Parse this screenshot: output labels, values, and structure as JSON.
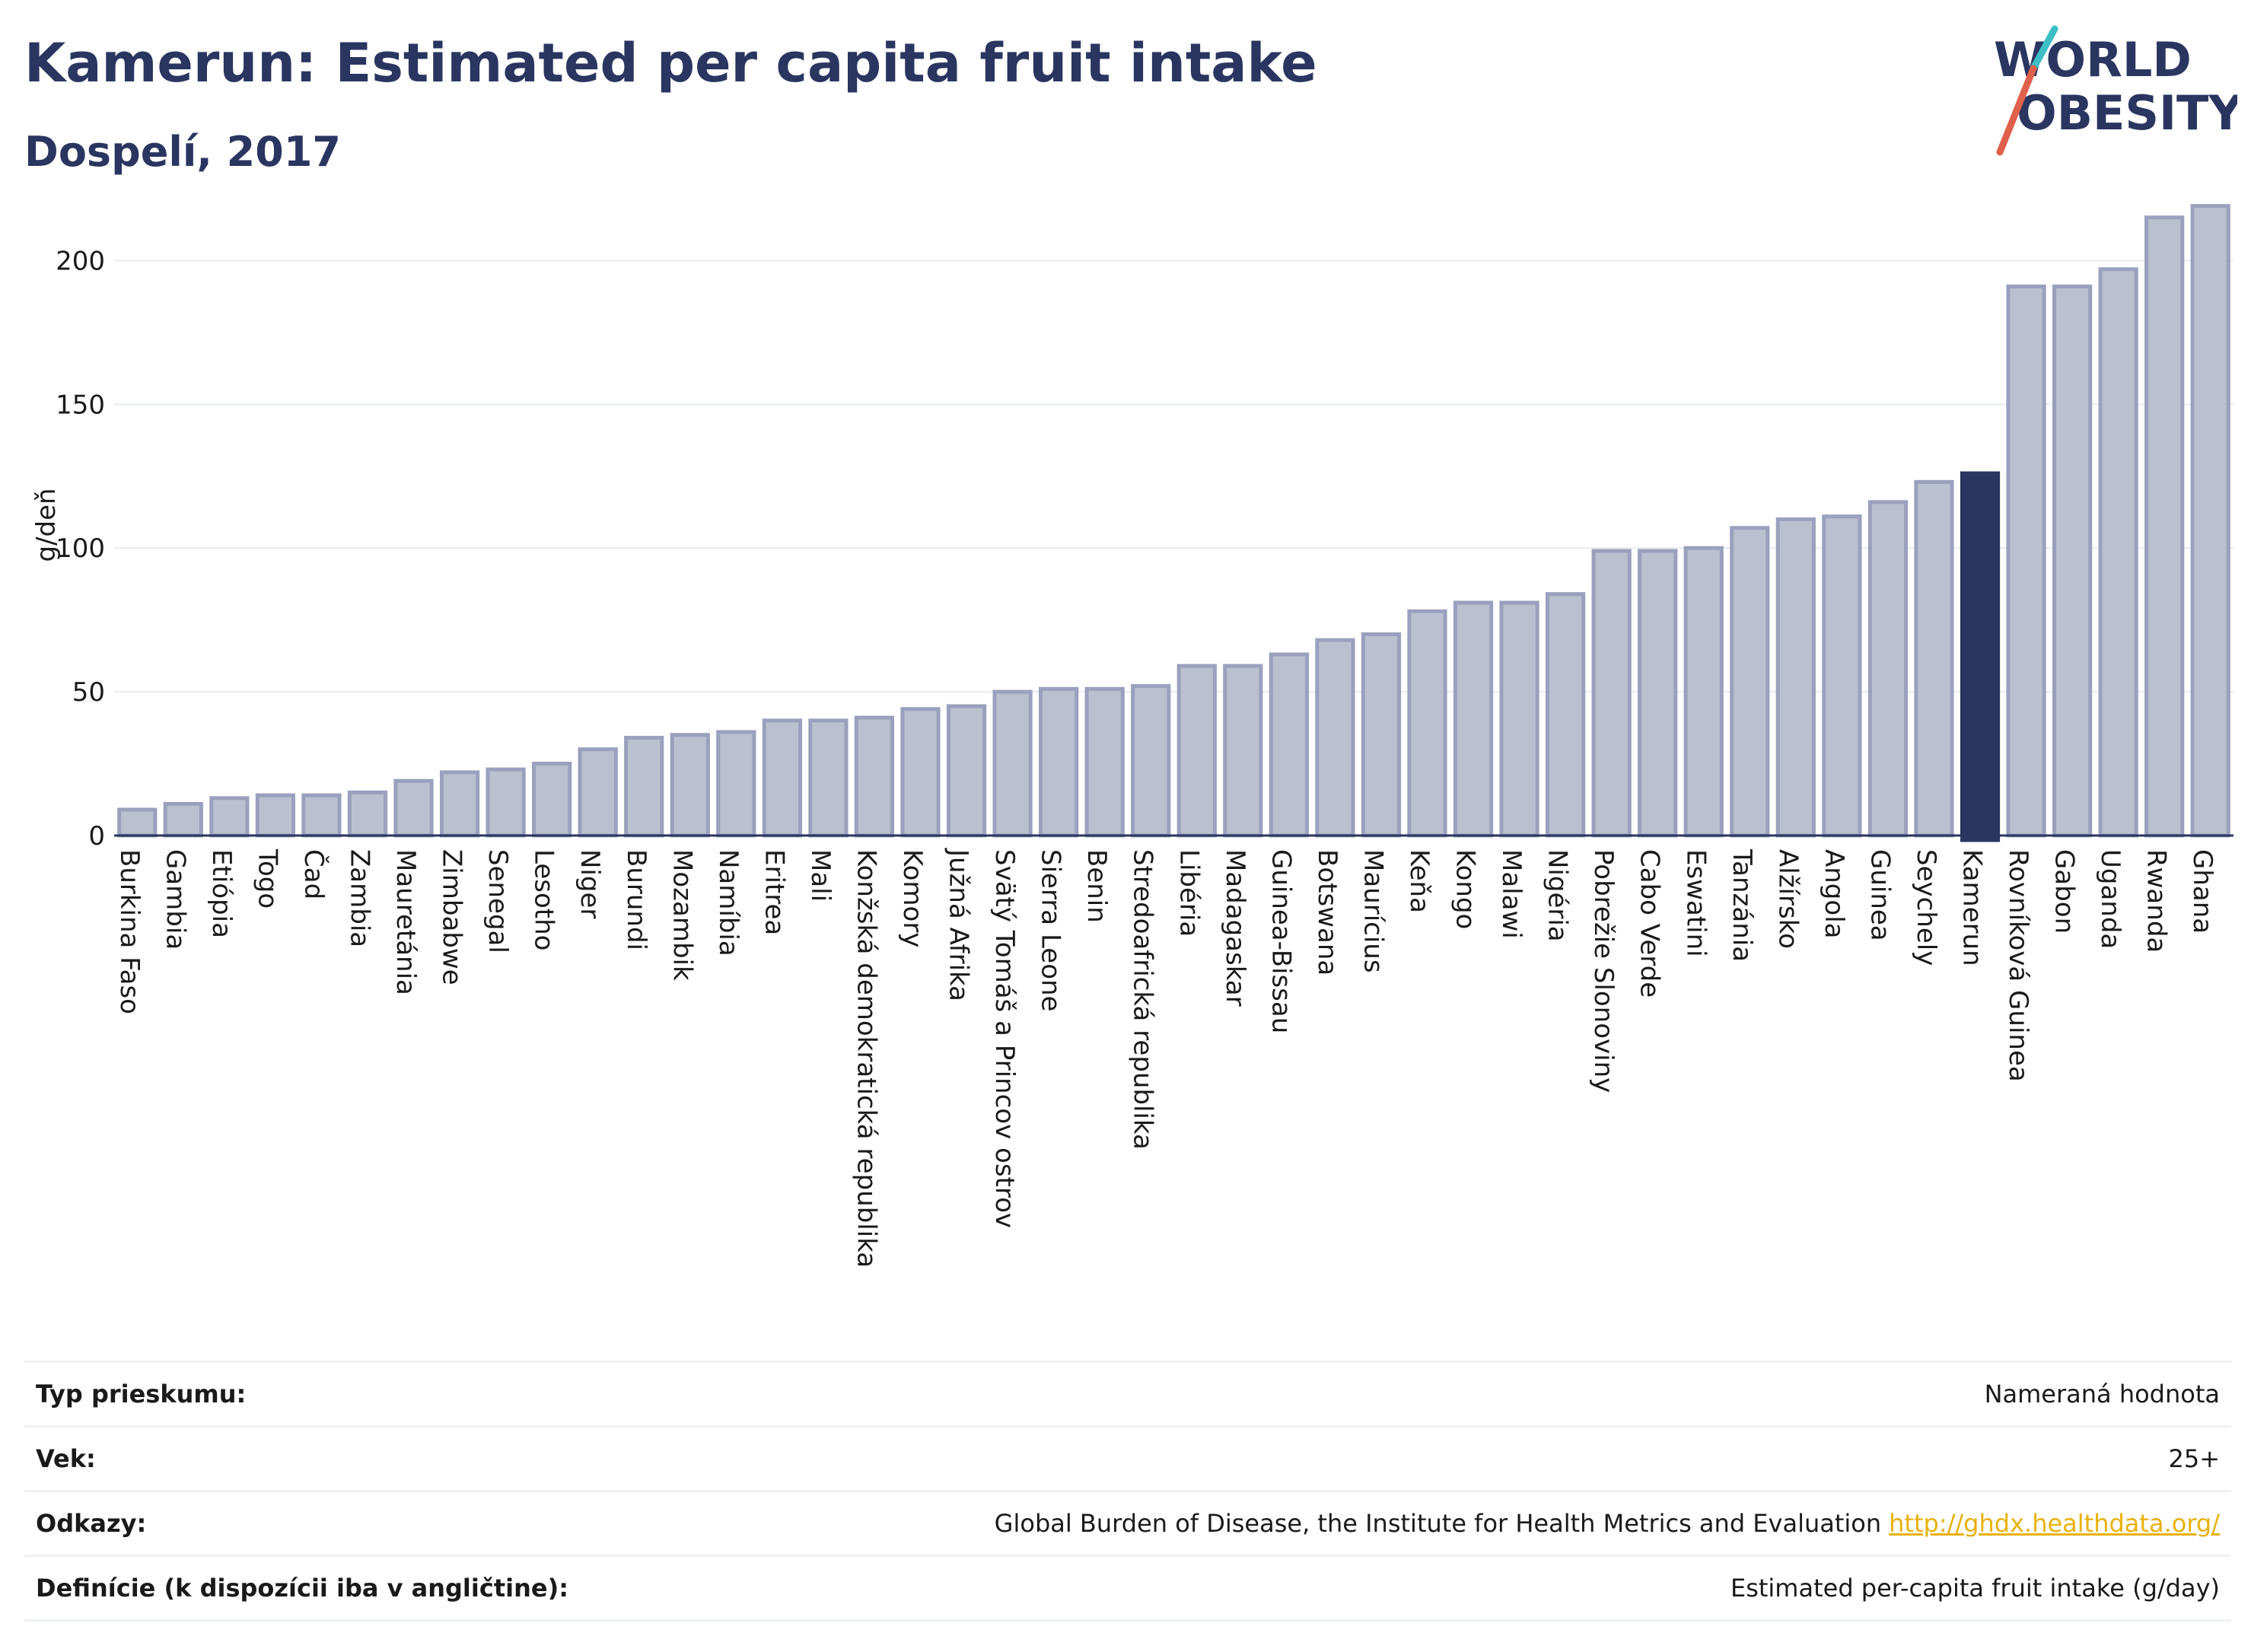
{
  "header": {
    "title": "Kamerun: Estimated per capita fruit intake",
    "subtitle": "Dospelí, 2017"
  },
  "logo": {
    "line1": "WORLD",
    "line2": "OBESITY"
  },
  "colors": {
    "bar": "#bbc0d0",
    "bar_border": "#9aa0bd",
    "highlight": "#2a3560",
    "text": "#2a3560",
    "grid": "#e8ebef",
    "link": "#e8b10c"
  },
  "chart_data": {
    "type": "bar",
    "ylabel": "g/deň",
    "ylim": [
      0,
      225
    ],
    "yticks": [
      0,
      50,
      100,
      150,
      200
    ],
    "highlight": "Kamerun",
    "categories": [
      "Burkina Faso",
      "Gambia",
      "Etiópia",
      "Togo",
      "Čad",
      "Zambia",
      "Mauretánia",
      "Zimbabwe",
      "Senegal",
      "Lesotho",
      "Niger",
      "Burundi",
      "Mozambik",
      "Namíbia",
      "Eritrea",
      "Mali",
      "Konžská demokratická republika",
      "Komory",
      "Južná Afrika",
      "Svätý Tomáš a Princov ostrov",
      "Sierra Leone",
      "Benin",
      "Stredoafrická republika",
      "Libéria",
      "Madagaskar",
      "Guinea-Bissau",
      "Botswana",
      "Maurícius",
      "Keňa",
      "Kongo",
      "Malawi",
      "Nigéria",
      "Pobrežie Slonoviny",
      "Cabo Verde",
      "Eswatini",
      "Tanzánia",
      "Alžírsko",
      "Angola",
      "Guinea",
      "Seychely",
      "Kamerun",
      "Rovníková Guinea",
      "Gabon",
      "Uganda",
      "Rwanda",
      "Ghana"
    ],
    "values": [
      9,
      11,
      13,
      14,
      14,
      15,
      19,
      22,
      23,
      25,
      30,
      34,
      35,
      36,
      40,
      40,
      41,
      44,
      45,
      50,
      51,
      51,
      52,
      59,
      59,
      63,
      68,
      70,
      78,
      81,
      81,
      84,
      99,
      99,
      100,
      107,
      110,
      111,
      116,
      123,
      126,
      191,
      191,
      197,
      215,
      219
    ]
  },
  "info": {
    "rows": [
      {
        "label": "Typ prieskumu:",
        "value": "Nameraná hodnota"
      },
      {
        "label": "Vek:",
        "value": "25+"
      },
      {
        "label": "Odkazy:",
        "value": "Global Burden of Disease, the Institute for Health Metrics and Evaluation",
        "link": "http://ghdx.healthdata.org/"
      },
      {
        "label": "Definície (k dispozícii iba v angličtine):",
        "value": "Estimated per-capita fruit intake (g/day)"
      }
    ]
  }
}
